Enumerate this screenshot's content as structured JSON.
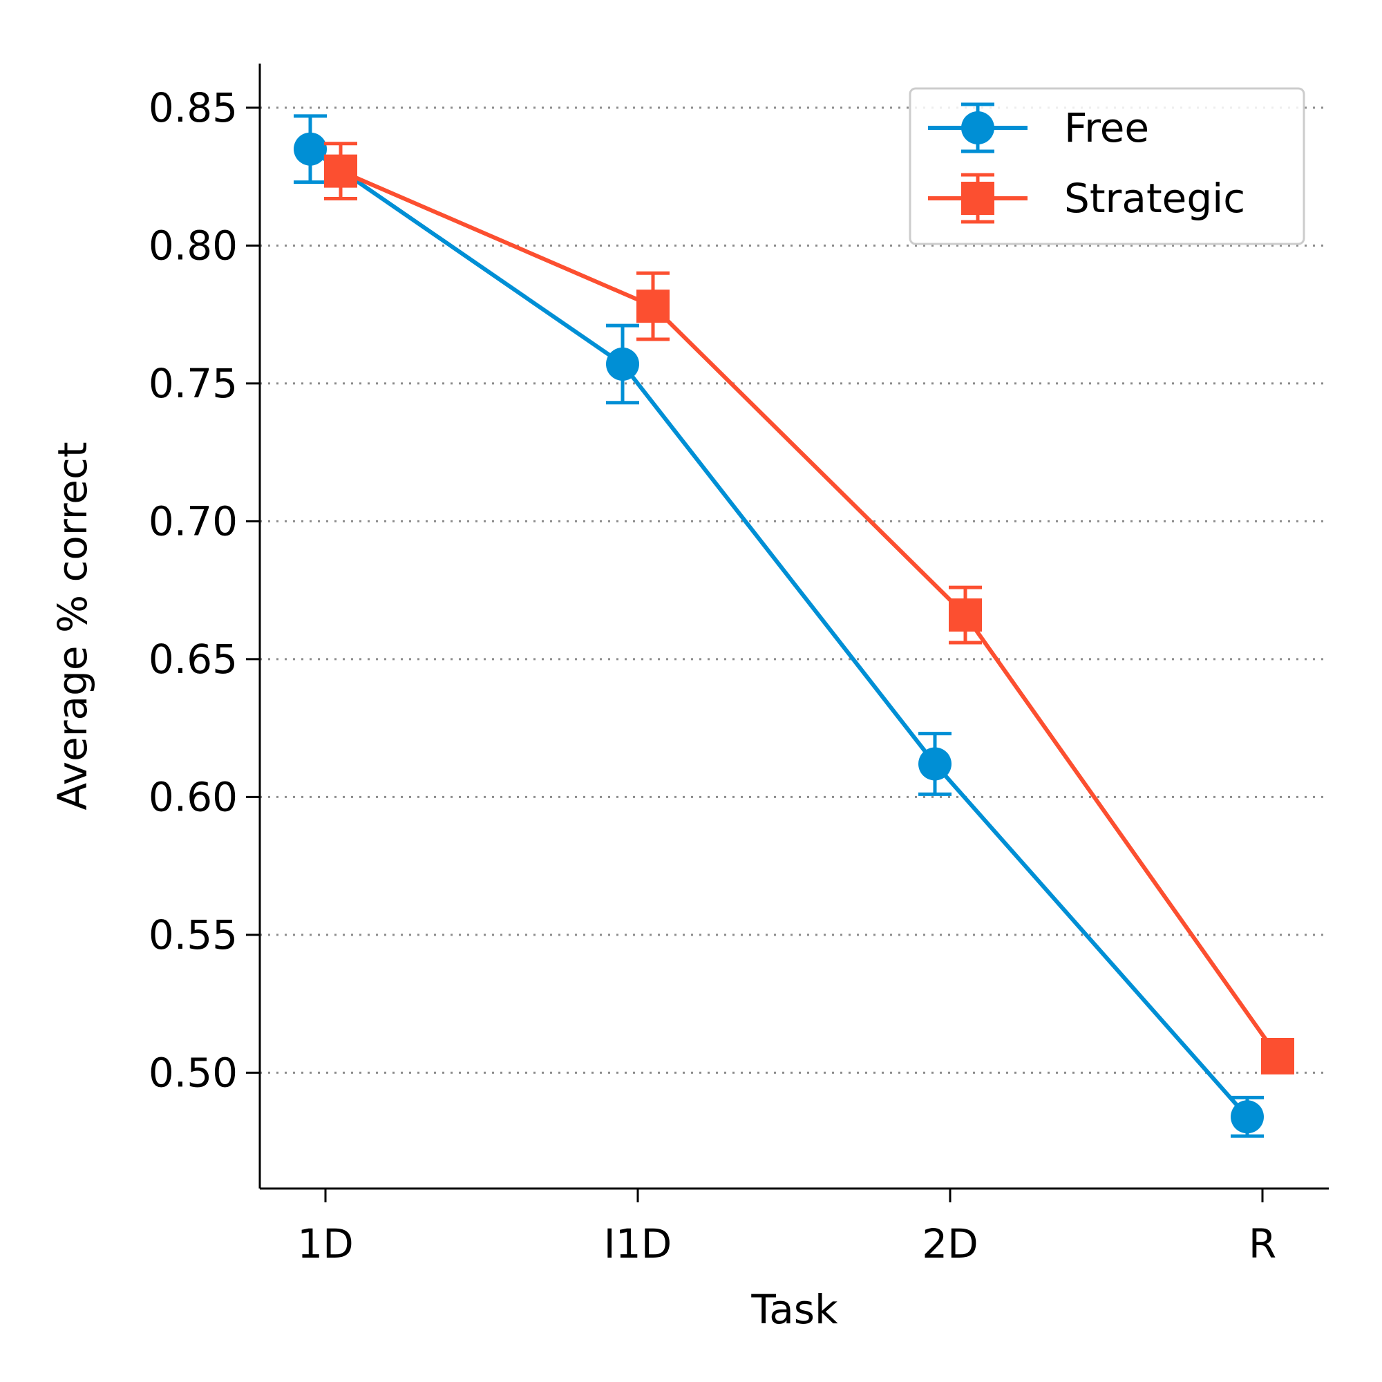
{
  "chart_data": {
    "type": "line",
    "title": "",
    "xlabel": "Task",
    "ylabel": "Average % correct",
    "categories": [
      "1D",
      "I1D",
      "2D",
      "R"
    ],
    "ylim": [
      0.458,
      0.866
    ],
    "yticks": [
      0.5,
      0.55,
      0.6,
      0.65,
      0.7,
      0.75,
      0.8,
      0.85
    ],
    "ytick_labels": [
      "0.50",
      "0.55",
      "0.60",
      "0.65",
      "0.70",
      "0.75",
      "0.80",
      "0.85"
    ],
    "grid": "horizontal dotted",
    "legend_position": "top-right",
    "series": [
      {
        "name": "Free",
        "marker": "circle",
        "color": "#008fd5",
        "values": [
          0.835,
          0.757,
          0.612,
          0.484
        ],
        "error": [
          0.012,
          0.014,
          0.011,
          0.007
        ]
      },
      {
        "name": "Strategic",
        "marker": "square",
        "color": "#fc4f30",
        "values": [
          0.827,
          0.778,
          0.666,
          0.506
        ],
        "error": [
          0.01,
          0.012,
          0.01,
          0.006
        ]
      }
    ]
  }
}
